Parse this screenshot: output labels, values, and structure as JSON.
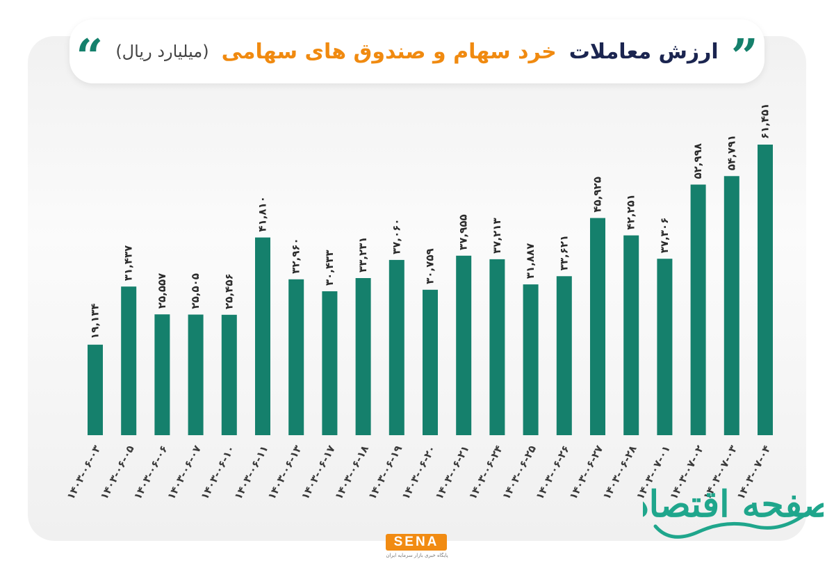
{
  "header": {
    "title_part1": "ارزش معاملات",
    "title_part2": "خرد سهام و صندوق های سهامی",
    "unit": "(میلیارد ریال)",
    "accent_color": "#15806c",
    "title_color": "#1b2550",
    "highlight_color": "#f08a10"
  },
  "chart_data": {
    "type": "bar",
    "title": "ارزش معاملات خرد سهام و صندوق های سهامی (میلیارد ریال)",
    "xlabel": "",
    "ylabel": "",
    "ylim": [
      0,
      65000
    ],
    "grid": false,
    "bar_color": "#15806c",
    "categories": [
      "۱۴۰۳-۰۶-۰۳",
      "۱۴۰۳-۰۶-۰۵",
      "۱۴۰۳-۰۶-۰۶",
      "۱۴۰۳-۰۶-۰۷",
      "۱۴۰۳-۰۶-۱۰",
      "۱۴۰۳-۰۶-۱۱",
      "۱۴۰۳-۰۶-۱۳",
      "۱۴۰۳-۰۶-۱۷",
      "۱۴۰۳-۰۶-۱۸",
      "۱۴۰۳-۰۶-۱۹",
      "۱۴۰۳-۰۶-۲۰",
      "۱۴۰۳-۰۶-۲۱",
      "۱۴۰۳-۰۶-۲۴",
      "۱۴۰۳-۰۶-۲۵",
      "۱۴۰۳-۰۶-۲۶",
      "۱۴۰۳-۰۶-۲۷",
      "۱۴۰۳-۰۶-۲۸",
      "۱۴۰۳-۰۷-۰۱",
      "۱۴۰۳-۰۷-۰۲",
      "۱۴۰۳-۰۷-۰۳",
      "۱۴۰۳-۰۷-۰۴"
    ],
    "values": [
      19134,
      31437,
      25557,
      25505,
      25456,
      41810,
      32960,
      30433,
      33231,
      37060,
      30759,
      37955,
      37213,
      31887,
      33621,
      45925,
      42251,
      37306,
      52998,
      54791,
      61451
    ],
    "value_labels": [
      "۱۹,۱۳۴",
      "۳۱,۴۳۷",
      "۲۵,۵۵۷",
      "۲۵,۵۰۵",
      "۲۵,۴۵۶",
      "۴۱,۸۱۰",
      "۳۲,۹۶۰",
      "۳۰,۴۳۳",
      "۳۳,۲۳۱",
      "۳۷,۰۶۰",
      "۳۰,۷۵۹",
      "۳۷,۹۵۵",
      "۳۷,۲۱۳",
      "۳۱,۸۸۷",
      "۳۳,۶۲۱",
      "۴۵,۹۲۵",
      "۴۲,۲۵۱",
      "۳۷,۳۰۶",
      "۵۲,۹۹۸",
      "۵۴,۷۹۱",
      "۶۱,۴۵۱"
    ]
  },
  "footer": {
    "logo": "SENA",
    "logo_subtitle": "پایگاه خبری بازار سرمایه ایران",
    "watermark": "صفحه اقتصاد"
  }
}
